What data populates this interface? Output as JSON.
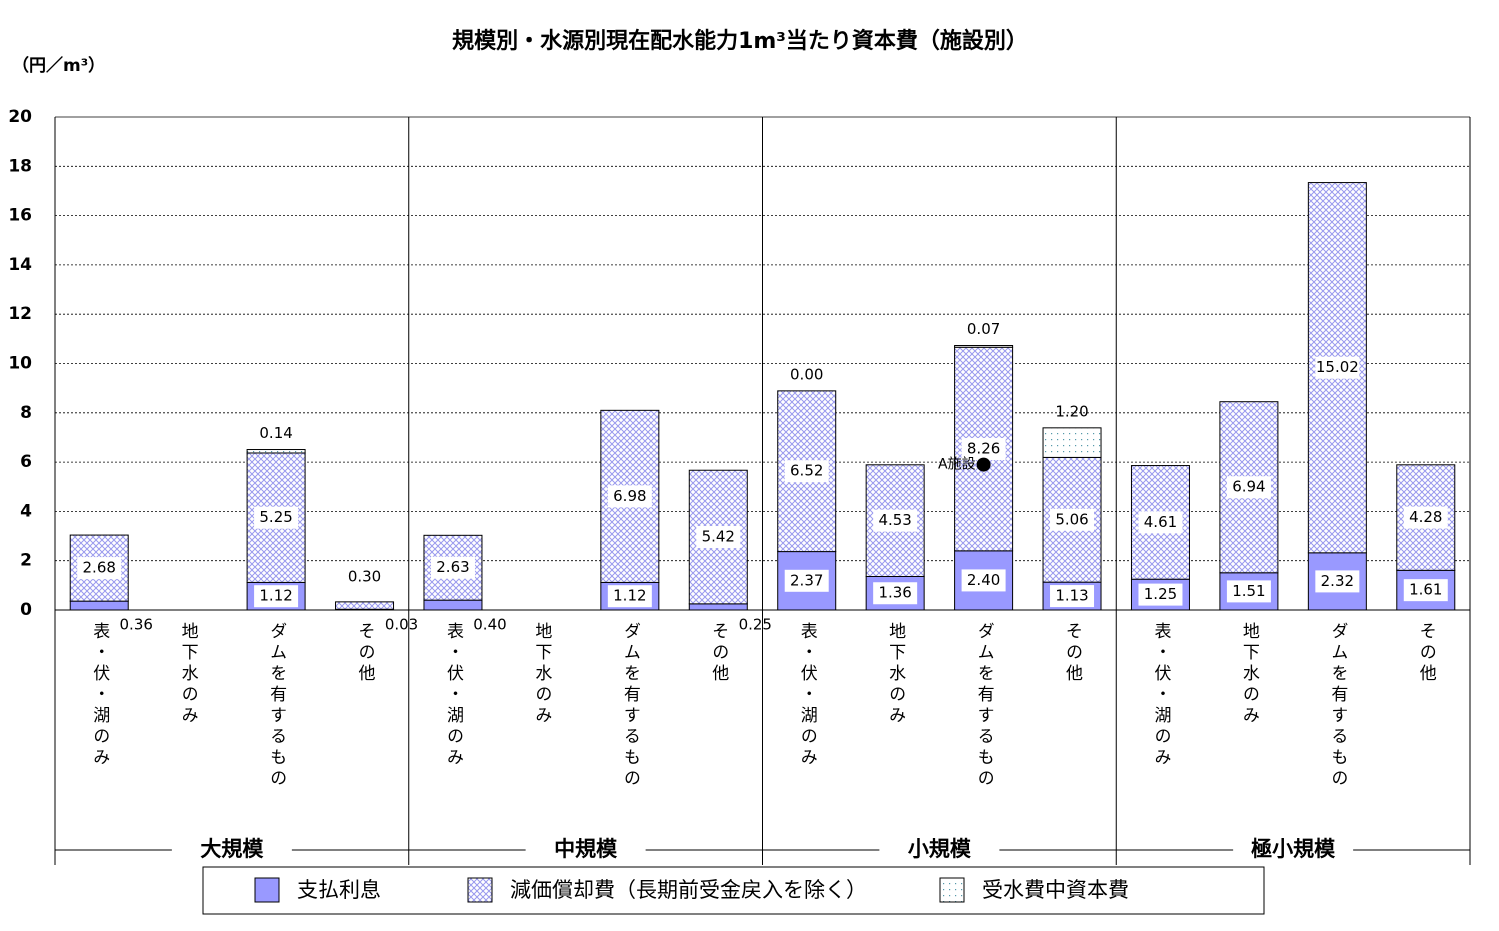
{
  "chart_data": {
    "type": "stacked-bar",
    "title": "規模別・水源別現在配水能力1m³当たり資本費（施設別）",
    "y_axis_label": "（円／m³）",
    "categories": [
      "表・伏・湖のみ",
      "地下水のみ",
      "ダムを有するもの",
      "その他",
      "表・伏・湖のみ",
      "地下水のみ",
      "ダムを有するもの",
      "その他",
      "表・伏・湖のみ",
      "地下水のみ",
      "ダムを有するもの",
      "その他",
      "表・伏・湖のみ",
      "地下水のみ",
      "ダムを有するもの",
      "その他"
    ],
    "groups": [
      "大規模",
      "中規模",
      "小規模",
      "極小規模"
    ],
    "series": [
      {
        "name": "支払利息",
        "color": "#9999ff",
        "pattern": "solid",
        "values": [
          0.36,
          null,
          1.12,
          0.03,
          0.4,
          null,
          1.12,
          0.25,
          2.37,
          1.36,
          2.4,
          1.13,
          1.25,
          1.51,
          2.32,
          1.61
        ],
        "value_labels": [
          "0.36",
          null,
          "1.12",
          "0.03",
          "0.40",
          null,
          "1.12",
          "0.25",
          "2.37",
          "1.36",
          "2.40",
          "1.13",
          "1.25",
          "1.51",
          "2.32",
          "1.61"
        ]
      },
      {
        "name": "減価償却費（長期前受金戻入を除く）",
        "color": "#9999ee",
        "pattern": "crosshatch",
        "values": [
          2.68,
          null,
          5.25,
          0.3,
          2.63,
          null,
          6.98,
          5.42,
          6.52,
          4.53,
          8.26,
          5.06,
          4.61,
          6.94,
          15.02,
          4.28
        ],
        "value_labels": [
          "2.68",
          null,
          "5.25",
          "0.30",
          "2.63",
          null,
          "6.98",
          "5.42",
          "6.52",
          "4.53",
          "8.26",
          "5.06",
          "4.61",
          "6.94",
          "15.02",
          "4.28"
        ]
      },
      {
        "name": "受水費中資本費",
        "color": "#5599aa",
        "pattern": "dots",
        "values": [
          null,
          null,
          0.14,
          null,
          null,
          null,
          null,
          null,
          0,
          null,
          0.07,
          1.2,
          null,
          null,
          null,
          null
        ],
        "value_labels": [
          null,
          null,
          "0.14",
          null,
          null,
          null,
          null,
          null,
          "0.00",
          null,
          "0.07",
          "1.20",
          null,
          null,
          null,
          null
        ]
      }
    ],
    "annotation": {
      "text": "A施設",
      "category": 10,
      "y": 5.9
    },
    "ylim": [
      0,
      20
    ],
    "yticks": [
      0,
      2,
      4,
      6,
      8,
      10,
      12,
      14,
      16,
      18,
      20
    ],
    "grid": true,
    "legend": "bottom"
  }
}
